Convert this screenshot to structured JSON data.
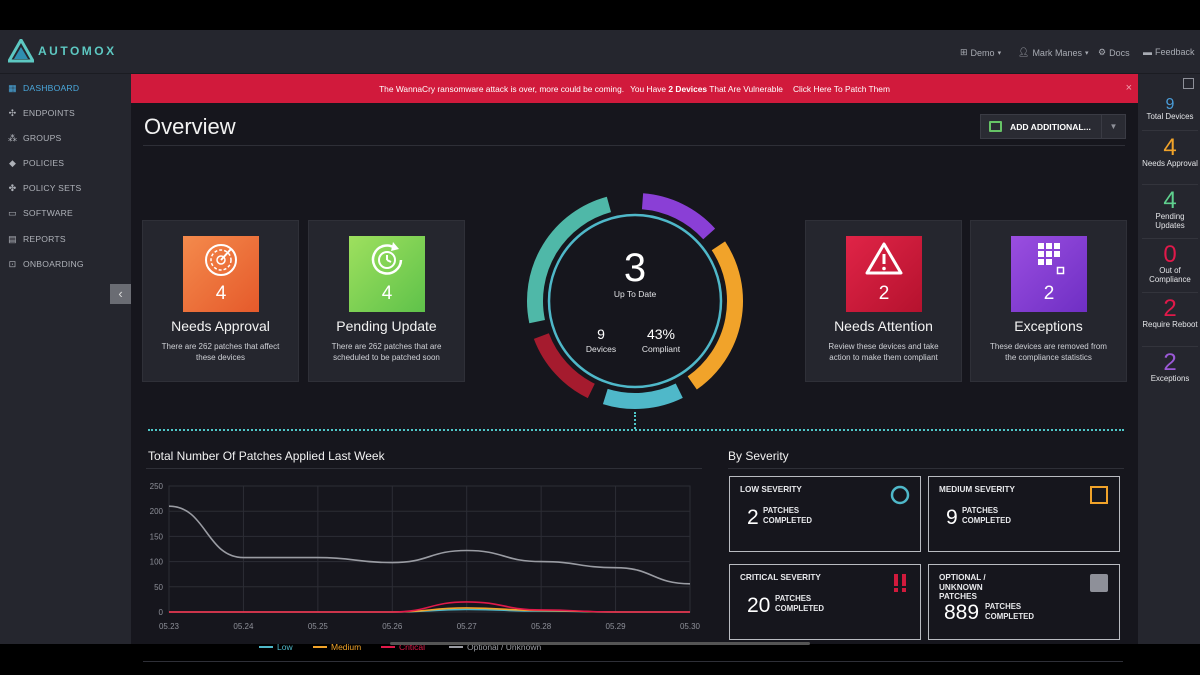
{
  "app": {
    "brand": "AUTOMOX"
  },
  "topnav": {
    "org": "Demo",
    "user": "Mark Manes",
    "docs": "Docs",
    "feedback": "Feedback"
  },
  "sidebar": {
    "items": [
      {
        "label": "DASHBOARD",
        "icon": "grid-icon",
        "active": true
      },
      {
        "label": "ENDPOINTS",
        "icon": "endpoints-icon"
      },
      {
        "label": "GROUPS",
        "icon": "groups-icon"
      },
      {
        "label": "POLICIES",
        "icon": "tag-icon"
      },
      {
        "label": "POLICY SETS",
        "icon": "policy-sets-icon"
      },
      {
        "label": "SOFTWARE",
        "icon": "laptop-icon"
      },
      {
        "label": "REPORTS",
        "icon": "reports-icon"
      },
      {
        "label": "ONBOARDING",
        "icon": "onboarding-icon"
      }
    ],
    "collapse_label": "‹"
  },
  "banner": {
    "part1": "The WannaCry ransomware attack is over, more could be coming.",
    "part2": "You Have",
    "bold": "2 Devices",
    "part3": "That Are Vulnerable",
    "link": "Click Here To Patch Them",
    "close": "×"
  },
  "overview": {
    "title": "Overview",
    "add_button": "ADD ADDITIONAL...",
    "dropdown": "▼",
    "cards": [
      {
        "title": "Needs Approval",
        "count": "4",
        "desc": "There are 262 patches that affect these devices",
        "color": "#f06f3a",
        "icon": "target-icon"
      },
      {
        "title": "Pending Update",
        "count": "4",
        "desc": "There are 262 patches that are scheduled to be patched soon",
        "color": "#7fd24e",
        "icon": "clock-refresh-icon"
      },
      {
        "title": "Needs Attention",
        "count": "2",
        "desc": "Review these devices and take action to make them compliant",
        "color": "#d11a3c",
        "icon": "warning-icon"
      },
      {
        "title": "Exceptions",
        "count": "2",
        "desc": "These devices are removed from the compliance statistics",
        "color": "#8a3fd6",
        "icon": "exceptions-grid-icon"
      }
    ],
    "donut": {
      "center_value": "3",
      "center_label": "Up To Date",
      "devices_value": "9",
      "devices_label": "Devices",
      "compliant_value": "43%",
      "compliant_label": "Compliant",
      "segments": [
        {
          "name": "purple",
          "color": "#8a3fd6",
          "fraction": 0.145
        },
        {
          "name": "orange",
          "color": "#f1a32a",
          "fraction": 0.27
        },
        {
          "name": "teal-bottom",
          "color": "#4fb8c9",
          "fraction": 0.145
        },
        {
          "name": "red",
          "color": "#a51b2e",
          "fraction": 0.145
        },
        {
          "name": "teal",
          "color": "#4fb8a8",
          "fraction": 0.265
        }
      ]
    }
  },
  "patch_chart_title": "Total Number Of Patches Applied Last Week",
  "chart_data": {
    "type": "line",
    "categories": [
      "05.23",
      "05.24",
      "05.25",
      "05.26",
      "05.27",
      "05.28",
      "05.29",
      "05.30"
    ],
    "yticks": [
      "0",
      "50",
      "100",
      "150",
      "200",
      "250"
    ],
    "ylim": [
      0,
      250
    ],
    "series": [
      {
        "name": "Low",
        "color": "#4fb8c9",
        "values": [
          0,
          0,
          0,
          0,
          5,
          2,
          0,
          0
        ]
      },
      {
        "name": "Medium",
        "color": "#f1a32a",
        "values": [
          0,
          0,
          0,
          0,
          8,
          3,
          0,
          0
        ]
      },
      {
        "name": "Critical",
        "color": "#e0194a",
        "values": [
          0,
          0,
          0,
          0,
          20,
          4,
          0,
          0
        ]
      },
      {
        "name": "Optional / Unknown",
        "color": "#9a9ca3",
        "values": [
          210,
          108,
          108,
          98,
          122,
          100,
          88,
          56
        ]
      }
    ],
    "legend": "bottom",
    "grid": true
  },
  "severity": {
    "title": "By Severity",
    "patches_label": "PATCHES",
    "completed_label": "COMPLETED",
    "items": [
      {
        "label": "LOW SEVERITY",
        "value": "2",
        "icon": "circle-icon",
        "color": "#4fb8c9"
      },
      {
        "label": "MEDIUM SEVERITY",
        "value": "9",
        "icon": "square-icon",
        "color": "#f1a32a"
      },
      {
        "label": "CRITICAL SEVERITY",
        "value": "20",
        "icon": "double-exclamation-icon",
        "color": "#d11a3c"
      },
      {
        "label": "OPTIONAL / UNKNOWN PATCHES",
        "label_lines": [
          "OPTIONAL /",
          "UNKNOWN",
          "PATCHES"
        ],
        "value": "889",
        "icon": "filled-square-icon",
        "color": "#8e9099"
      }
    ]
  },
  "rail": {
    "items": [
      {
        "value": "9",
        "label": "Total Devices",
        "color": "#4a9cd8"
      },
      {
        "value": "4",
        "label": "Needs Approval",
        "color": "#f1a32a"
      },
      {
        "value": "4",
        "label": "Pending Updates",
        "color": "#5fd08e"
      },
      {
        "value": "0",
        "label": "Out of Compliance",
        "color": "#e0194a"
      },
      {
        "value": "2",
        "label": "Require Reboot",
        "color": "#e0194a"
      },
      {
        "value": "2",
        "label": "Exceptions",
        "color": "#9b59d6"
      }
    ]
  }
}
